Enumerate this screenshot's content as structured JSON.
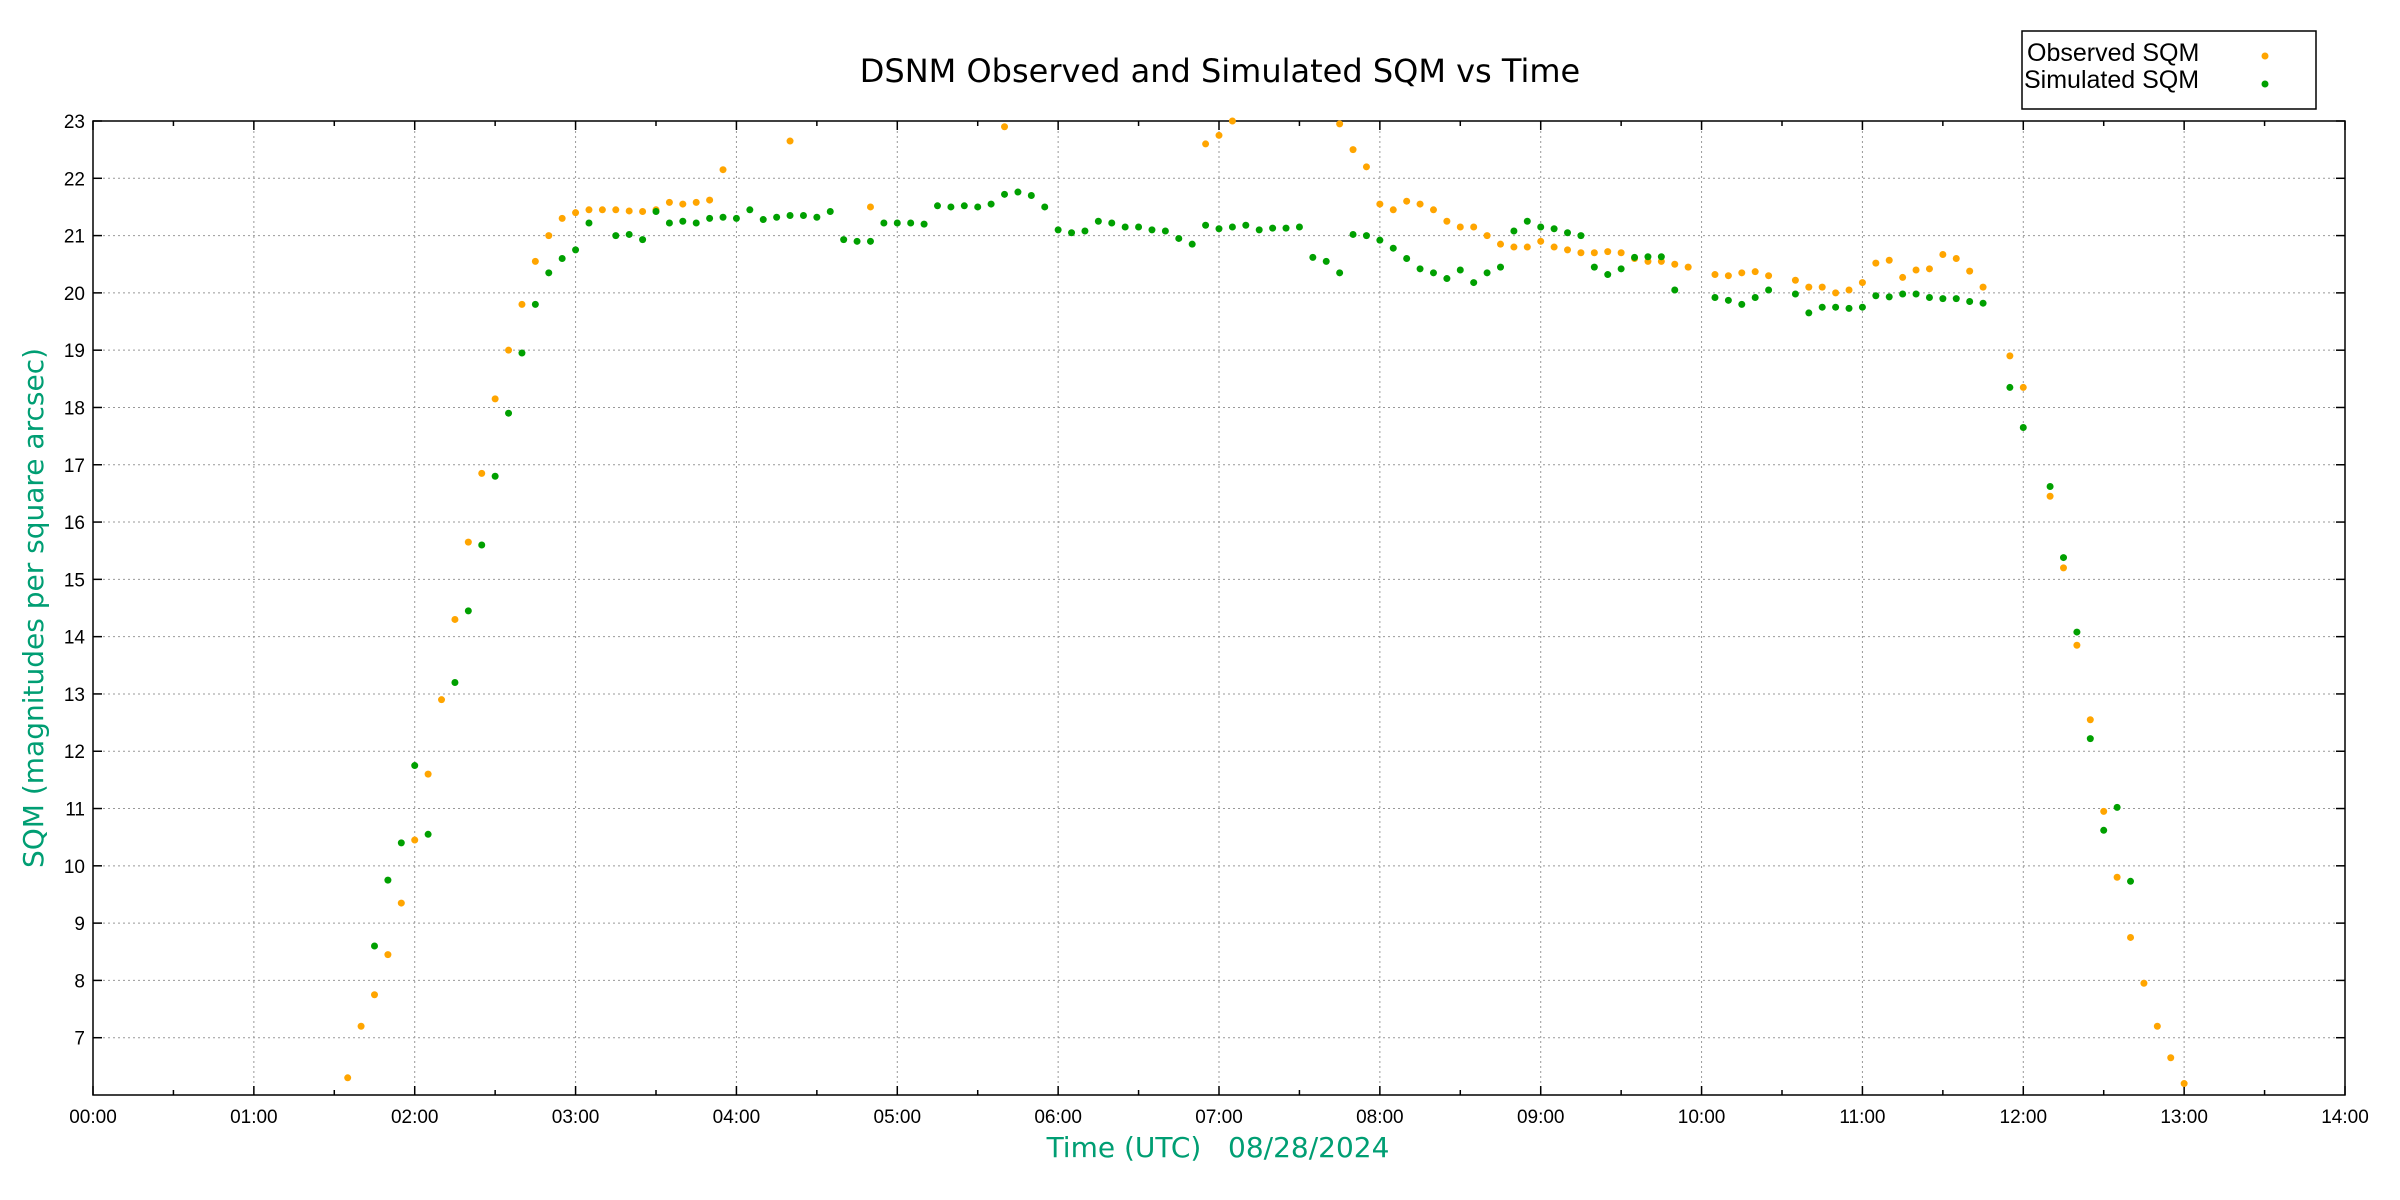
{
  "chart_data": {
    "type": "scatter",
    "title": "DSNM Observed and Simulated SQM vs Time",
    "xlabel": "Time (UTC)   08/28/2024",
    "ylabel": "SQM (magnitudes per square arcsec)",
    "xlim": [
      "00:00",
      "14:00"
    ],
    "ylim": [
      6,
      23
    ],
    "x_ticks": [
      "00:00",
      "01:00",
      "02:00",
      "03:00",
      "04:00",
      "05:00",
      "06:00",
      "07:00",
      "08:00",
      "09:00",
      "10:00",
      "11:00",
      "12:00",
      "13:00",
      "14:00"
    ],
    "y_ticks": [
      "7",
      "8",
      "9",
      "10",
      "11",
      "12",
      "13",
      "14",
      "15",
      "16",
      "17",
      "18",
      "19",
      "20",
      "21",
      "22",
      "23"
    ],
    "grid": true,
    "legend_position": "top-right",
    "label_color": "#009e73",
    "series": [
      {
        "name": "Observed SQM",
        "color": "#ffa500",
        "points": [
          [
            "01:35",
            6.3
          ],
          [
            "01:40",
            7.2
          ],
          [
            "01:45",
            7.75
          ],
          [
            "01:50",
            8.45
          ],
          [
            "01:55",
            9.35
          ],
          [
            "02:00",
            10.45
          ],
          [
            "02:05",
            11.6
          ],
          [
            "02:10",
            12.9
          ],
          [
            "02:15",
            14.3
          ],
          [
            "02:20",
            15.65
          ],
          [
            "02:25",
            16.85
          ],
          [
            "02:30",
            18.15
          ],
          [
            "02:35",
            19.0
          ],
          [
            "02:40",
            19.8
          ],
          [
            "02:45",
            20.55
          ],
          [
            "02:50",
            21.0
          ],
          [
            "02:55",
            21.3
          ],
          [
            "03:00",
            21.4
          ],
          [
            "03:05",
            21.45
          ],
          [
            "03:10",
            21.45
          ],
          [
            "03:15",
            21.45
          ],
          [
            "03:20",
            21.43
          ],
          [
            "03:25",
            21.42
          ],
          [
            "03:30",
            21.45
          ],
          [
            "03:35",
            21.58
          ],
          [
            "03:40",
            21.55
          ],
          [
            "03:45",
            21.58
          ],
          [
            "03:50",
            21.62
          ],
          [
            "03:55",
            22.15
          ],
          [
            "04:20",
            22.65
          ],
          [
            "04:50",
            21.5
          ],
          [
            "05:40",
            22.9
          ],
          [
            "06:55",
            22.6
          ],
          [
            "07:00",
            22.75
          ],
          [
            "07:05",
            23.0
          ],
          [
            "07:45",
            22.95
          ],
          [
            "07:50",
            22.5
          ],
          [
            "07:55",
            22.2
          ],
          [
            "08:00",
            21.55
          ],
          [
            "08:05",
            21.45
          ],
          [
            "08:10",
            21.6
          ],
          [
            "08:15",
            21.55
          ],
          [
            "08:20",
            21.45
          ],
          [
            "08:25",
            21.25
          ],
          [
            "08:30",
            21.15
          ],
          [
            "08:35",
            21.15
          ],
          [
            "08:40",
            21.0
          ],
          [
            "08:45",
            20.85
          ],
          [
            "08:50",
            20.8
          ],
          [
            "08:55",
            20.8
          ],
          [
            "09:00",
            20.9
          ],
          [
            "09:05",
            20.8
          ],
          [
            "09:10",
            20.75
          ],
          [
            "09:15",
            20.7
          ],
          [
            "09:20",
            20.7
          ],
          [
            "09:25",
            20.72
          ],
          [
            "09:30",
            20.7
          ],
          [
            "09:35",
            20.6
          ],
          [
            "09:40",
            20.55
          ],
          [
            "09:45",
            20.55
          ],
          [
            "09:50",
            20.5
          ],
          [
            "09:55",
            20.45
          ],
          [
            "10:05",
            20.32
          ],
          [
            "10:10",
            20.3
          ],
          [
            "10:15",
            20.35
          ],
          [
            "10:20",
            20.37
          ],
          [
            "10:25",
            20.3
          ],
          [
            "10:35",
            20.22
          ],
          [
            "10:40",
            20.1
          ],
          [
            "10:45",
            20.1
          ],
          [
            "10:50",
            20.0
          ],
          [
            "10:55",
            20.05
          ],
          [
            "11:00",
            20.18
          ],
          [
            "11:05",
            20.52
          ],
          [
            "11:10",
            20.57
          ],
          [
            "11:15",
            20.27
          ],
          [
            "11:20",
            20.4
          ],
          [
            "11:25",
            20.42
          ],
          [
            "11:30",
            20.67
          ],
          [
            "11:35",
            20.6
          ],
          [
            "11:40",
            20.38
          ],
          [
            "11:45",
            20.1
          ],
          [
            "11:55",
            18.9
          ],
          [
            "12:00",
            18.35
          ],
          [
            "12:10",
            16.45
          ],
          [
            "12:15",
            15.2
          ],
          [
            "12:20",
            13.85
          ],
          [
            "12:25",
            12.55
          ],
          [
            "12:30",
            10.95
          ],
          [
            "12:35",
            9.8
          ],
          [
            "12:40",
            8.75
          ],
          [
            "12:45",
            7.95
          ],
          [
            "12:50",
            7.2
          ],
          [
            "12:55",
            6.65
          ],
          [
            "13:00",
            6.2
          ]
        ]
      },
      {
        "name": "Simulated SQM",
        "color": "#00a000",
        "points": [
          [
            "01:45",
            8.6
          ],
          [
            "01:50",
            9.75
          ],
          [
            "01:55",
            10.4
          ],
          [
            "02:00",
            11.75
          ],
          [
            "02:05",
            10.55
          ],
          [
            "02:15",
            13.2
          ],
          [
            "02:20",
            14.45
          ],
          [
            "02:25",
            15.6
          ],
          [
            "02:30",
            16.8
          ],
          [
            "02:35",
            17.9
          ],
          [
            "02:40",
            18.95
          ],
          [
            "02:45",
            19.8
          ],
          [
            "02:50",
            20.35
          ],
          [
            "02:55",
            20.6
          ],
          [
            "03:00",
            20.75
          ],
          [
            "03:05",
            21.22
          ],
          [
            "03:15",
            21.0
          ],
          [
            "03:20",
            21.02
          ],
          [
            "03:25",
            20.93
          ],
          [
            "03:30",
            21.42
          ],
          [
            "03:35",
            21.22
          ],
          [
            "03:40",
            21.25
          ],
          [
            "03:45",
            21.22
          ],
          [
            "03:50",
            21.3
          ],
          [
            "03:55",
            21.32
          ],
          [
            "04:00",
            21.3
          ],
          [
            "04:05",
            21.45
          ],
          [
            "04:10",
            21.28
          ],
          [
            "04:15",
            21.32
          ],
          [
            "04:20",
            21.35
          ],
          [
            "04:25",
            21.35
          ],
          [
            "04:30",
            21.32
          ],
          [
            "04:35",
            21.42
          ],
          [
            "04:40",
            20.93
          ],
          [
            "04:45",
            20.9
          ],
          [
            "04:50",
            20.9
          ],
          [
            "04:55",
            21.22
          ],
          [
            "05:00",
            21.22
          ],
          [
            "05:05",
            21.22
          ],
          [
            "05:10",
            21.2
          ],
          [
            "05:15",
            21.52
          ],
          [
            "05:20",
            21.5
          ],
          [
            "05:25",
            21.52
          ],
          [
            "05:30",
            21.5
          ],
          [
            "05:35",
            21.55
          ],
          [
            "05:40",
            21.72
          ],
          [
            "05:45",
            21.76
          ],
          [
            "05:50",
            21.7
          ],
          [
            "05:55",
            21.5
          ],
          [
            "06:00",
            21.1
          ],
          [
            "06:05",
            21.05
          ],
          [
            "06:10",
            21.08
          ],
          [
            "06:15",
            21.25
          ],
          [
            "06:20",
            21.22
          ],
          [
            "06:25",
            21.15
          ],
          [
            "06:30",
            21.15
          ],
          [
            "06:35",
            21.1
          ],
          [
            "06:40",
            21.08
          ],
          [
            "06:45",
            20.95
          ],
          [
            "06:50",
            20.85
          ],
          [
            "06:55",
            21.18
          ],
          [
            "07:00",
            21.12
          ],
          [
            "07:05",
            21.15
          ],
          [
            "07:10",
            21.18
          ],
          [
            "07:15",
            21.1
          ],
          [
            "07:20",
            21.13
          ],
          [
            "07:25",
            21.13
          ],
          [
            "07:30",
            21.15
          ],
          [
            "07:35",
            20.62
          ],
          [
            "07:40",
            20.55
          ],
          [
            "07:45",
            20.35
          ],
          [
            "07:50",
            21.02
          ],
          [
            "07:55",
            21.0
          ],
          [
            "08:00",
            20.92
          ],
          [
            "08:05",
            20.78
          ],
          [
            "08:10",
            20.6
          ],
          [
            "08:15",
            20.42
          ],
          [
            "08:20",
            20.35
          ],
          [
            "08:25",
            20.25
          ],
          [
            "08:30",
            20.4
          ],
          [
            "08:35",
            20.18
          ],
          [
            "08:40",
            20.35
          ],
          [
            "08:45",
            20.45
          ],
          [
            "08:50",
            21.08
          ],
          [
            "08:55",
            21.25
          ],
          [
            "09:00",
            21.15
          ],
          [
            "09:05",
            21.12
          ],
          [
            "09:10",
            21.05
          ],
          [
            "09:15",
            21.0
          ],
          [
            "09:20",
            20.45
          ],
          [
            "09:25",
            20.32
          ],
          [
            "09:30",
            20.42
          ],
          [
            "09:35",
            20.62
          ],
          [
            "09:40",
            20.63
          ],
          [
            "09:45",
            20.63
          ],
          [
            "09:50",
            20.05
          ],
          [
            "10:05",
            19.92
          ],
          [
            "10:10",
            19.87
          ],
          [
            "10:15",
            19.8
          ],
          [
            "10:20",
            19.92
          ],
          [
            "10:25",
            20.05
          ],
          [
            "10:35",
            19.98
          ],
          [
            "10:40",
            19.65
          ],
          [
            "10:45",
            19.75
          ],
          [
            "10:50",
            19.75
          ],
          [
            "10:55",
            19.73
          ],
          [
            "11:00",
            19.75
          ],
          [
            "11:05",
            19.95
          ],
          [
            "11:10",
            19.93
          ],
          [
            "11:15",
            19.98
          ],
          [
            "11:20",
            19.98
          ],
          [
            "11:25",
            19.92
          ],
          [
            "11:30",
            19.9
          ],
          [
            "11:35",
            19.9
          ],
          [
            "11:40",
            19.85
          ],
          [
            "11:45",
            19.82
          ],
          [
            "11:55",
            18.35
          ],
          [
            "12:00",
            17.65
          ],
          [
            "12:10",
            16.62
          ],
          [
            "12:15",
            15.38
          ],
          [
            "12:20",
            14.08
          ],
          [
            "12:25",
            12.22
          ],
          [
            "12:30",
            10.62
          ],
          [
            "12:35",
            11.02
          ],
          [
            "12:40",
            9.73
          ]
        ]
      }
    ]
  }
}
